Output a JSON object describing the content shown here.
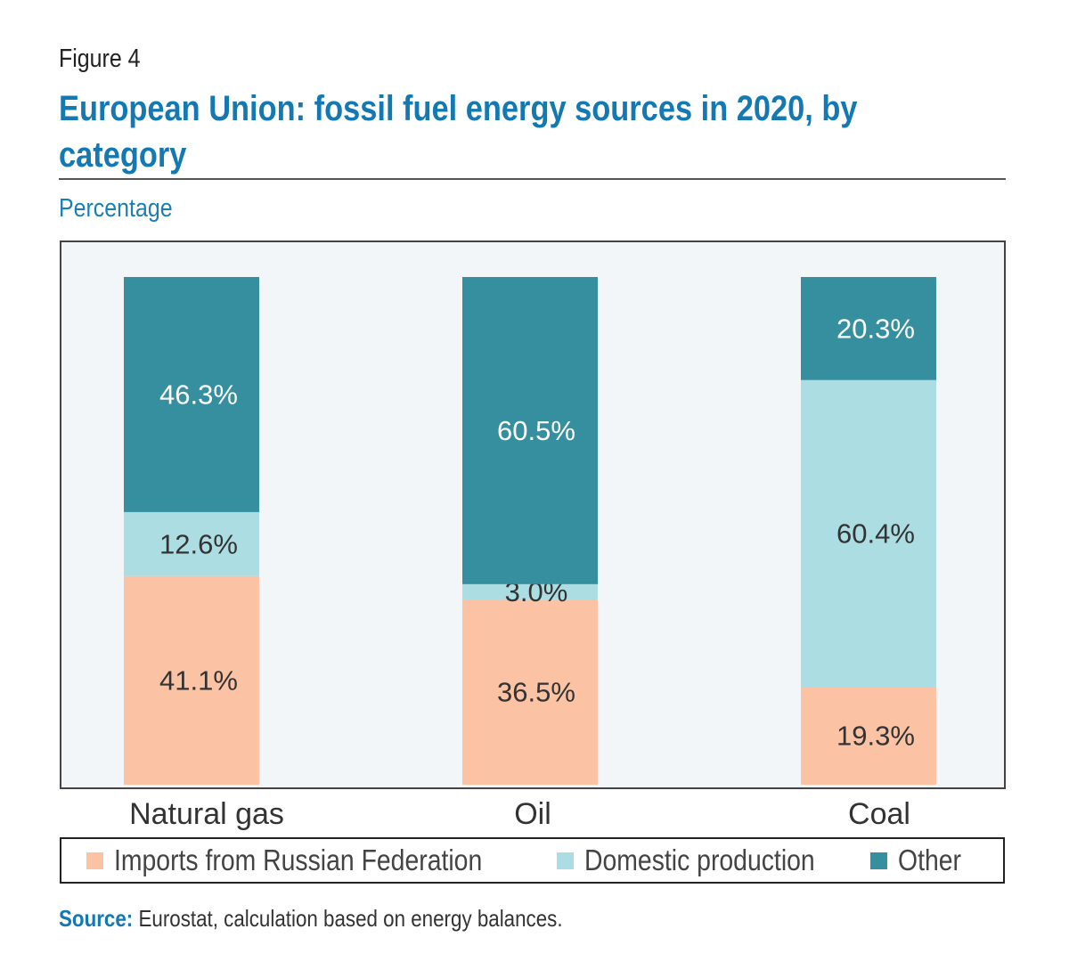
{
  "figure_label": "Figure 4",
  "title": "European Union: fossil fuel energy sources in 2020, by category",
  "subtitle": "Percentage",
  "source": {
    "label": "Source:",
    "text": " Eurostat, calculation based on energy balances."
  },
  "colors": {
    "title": "#1479b2",
    "plot_background": "#f2f6f8"
  },
  "chart_data": {
    "type": "bar",
    "stacked": true,
    "categories": [
      "Natural gas",
      "Oil",
      "Coal"
    ],
    "series": [
      {
        "name": "Imports from Russian Federation",
        "values": [
          41.1,
          36.5,
          19.3
        ],
        "labels": [
          "41.1%",
          "36.5%",
          "19.3%"
        ],
        "color": "#fbc2a4",
        "label_color": "#333333"
      },
      {
        "name": "Domestic production",
        "values": [
          12.6,
          3.0,
          60.4
        ],
        "labels": [
          "12.6%",
          "3.0%",
          "60.4%"
        ],
        "color": "#acdde3",
        "label_color": "#333333"
      },
      {
        "name": "Other",
        "values": [
          46.3,
          60.5,
          20.3
        ],
        "labels": [
          "46.3%",
          "60.5%",
          "20.3%"
        ],
        "color": "#358f9f",
        "label_color": "#ffffff"
      }
    ],
    "title": "European Union: fossil fuel energy sources in 2020, by category",
    "ylabel": "Percentage",
    "ylim": [
      0,
      100
    ],
    "grid": false,
    "legend_position": "bottom"
  }
}
